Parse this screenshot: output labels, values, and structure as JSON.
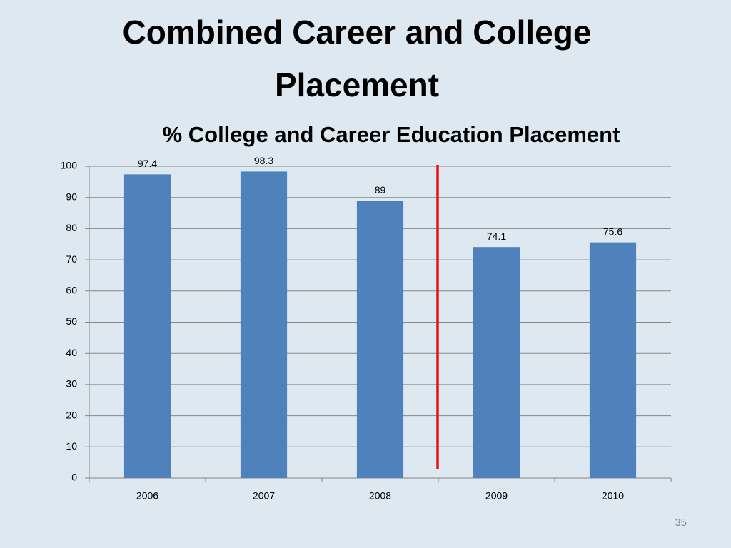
{
  "slide_title": "Combined Career and College Placement",
  "page_number": 35,
  "chart_data": {
    "type": "bar",
    "title": "% College and Career Education Placement",
    "categories": [
      "2006",
      "2007",
      "2008",
      "2009",
      "2010"
    ],
    "values": [
      97.4,
      98.3,
      89,
      74.1,
      75.6
    ],
    "color": "#4f81bd",
    "ylim": [
      0,
      100
    ],
    "yticks": [
      0,
      10,
      20,
      30,
      40,
      50,
      60,
      70,
      80,
      90,
      100
    ],
    "grid": true,
    "data_labels": true
  }
}
